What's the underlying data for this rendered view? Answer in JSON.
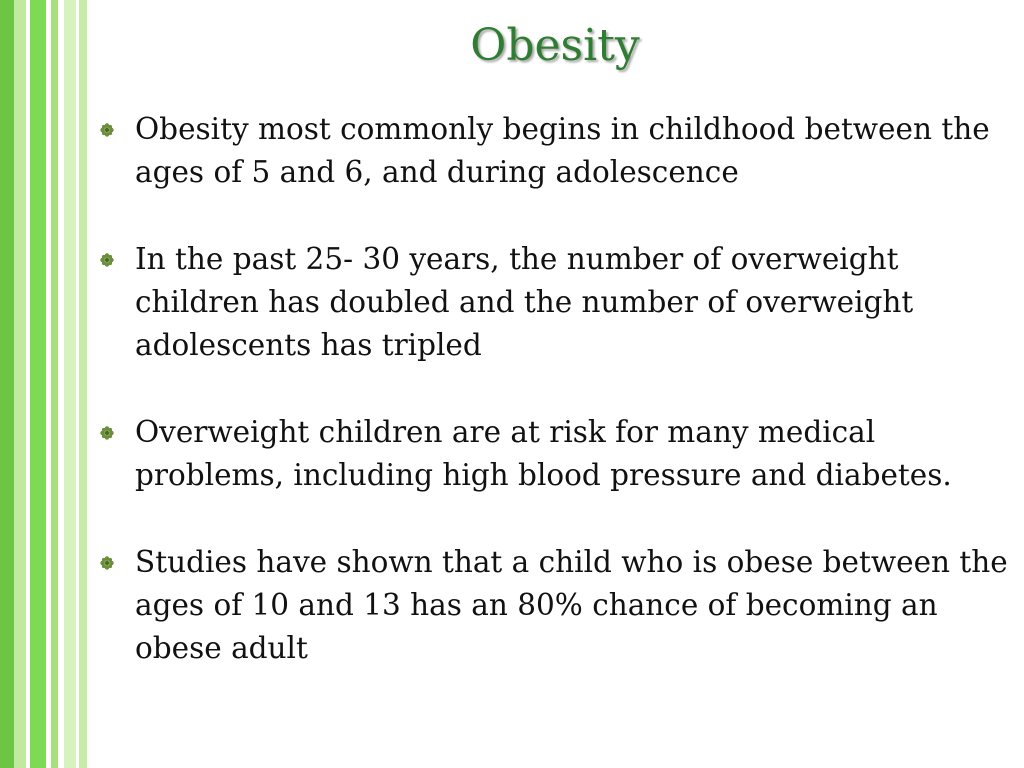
{
  "slide": {
    "title": "Obesity",
    "bullets": [
      {
        "text": "Obesity most commonly begins in childhood between the ages of 5 and 6, and during adolescence"
      },
      {
        "text": "In the past 25- 30 years, the number of overweight children has doubled and the number of overweight adolescents has tripled"
      },
      {
        "text": "Overweight children are at risk for many medical problems, including high blood pressure and diabetes."
      },
      {
        "text": "Studies have shown that a child who is obese between the ages of 10 and 13 has an 80% chance of becoming an obese adult"
      }
    ],
    "colors": {
      "title": "#2f7d32",
      "bullet_icon": "#6b8f3a",
      "stripe_dark": "#6cc644",
      "stripe_light": "#c9efa8"
    },
    "bullet_icon_name": "flower-bullet-icon"
  }
}
